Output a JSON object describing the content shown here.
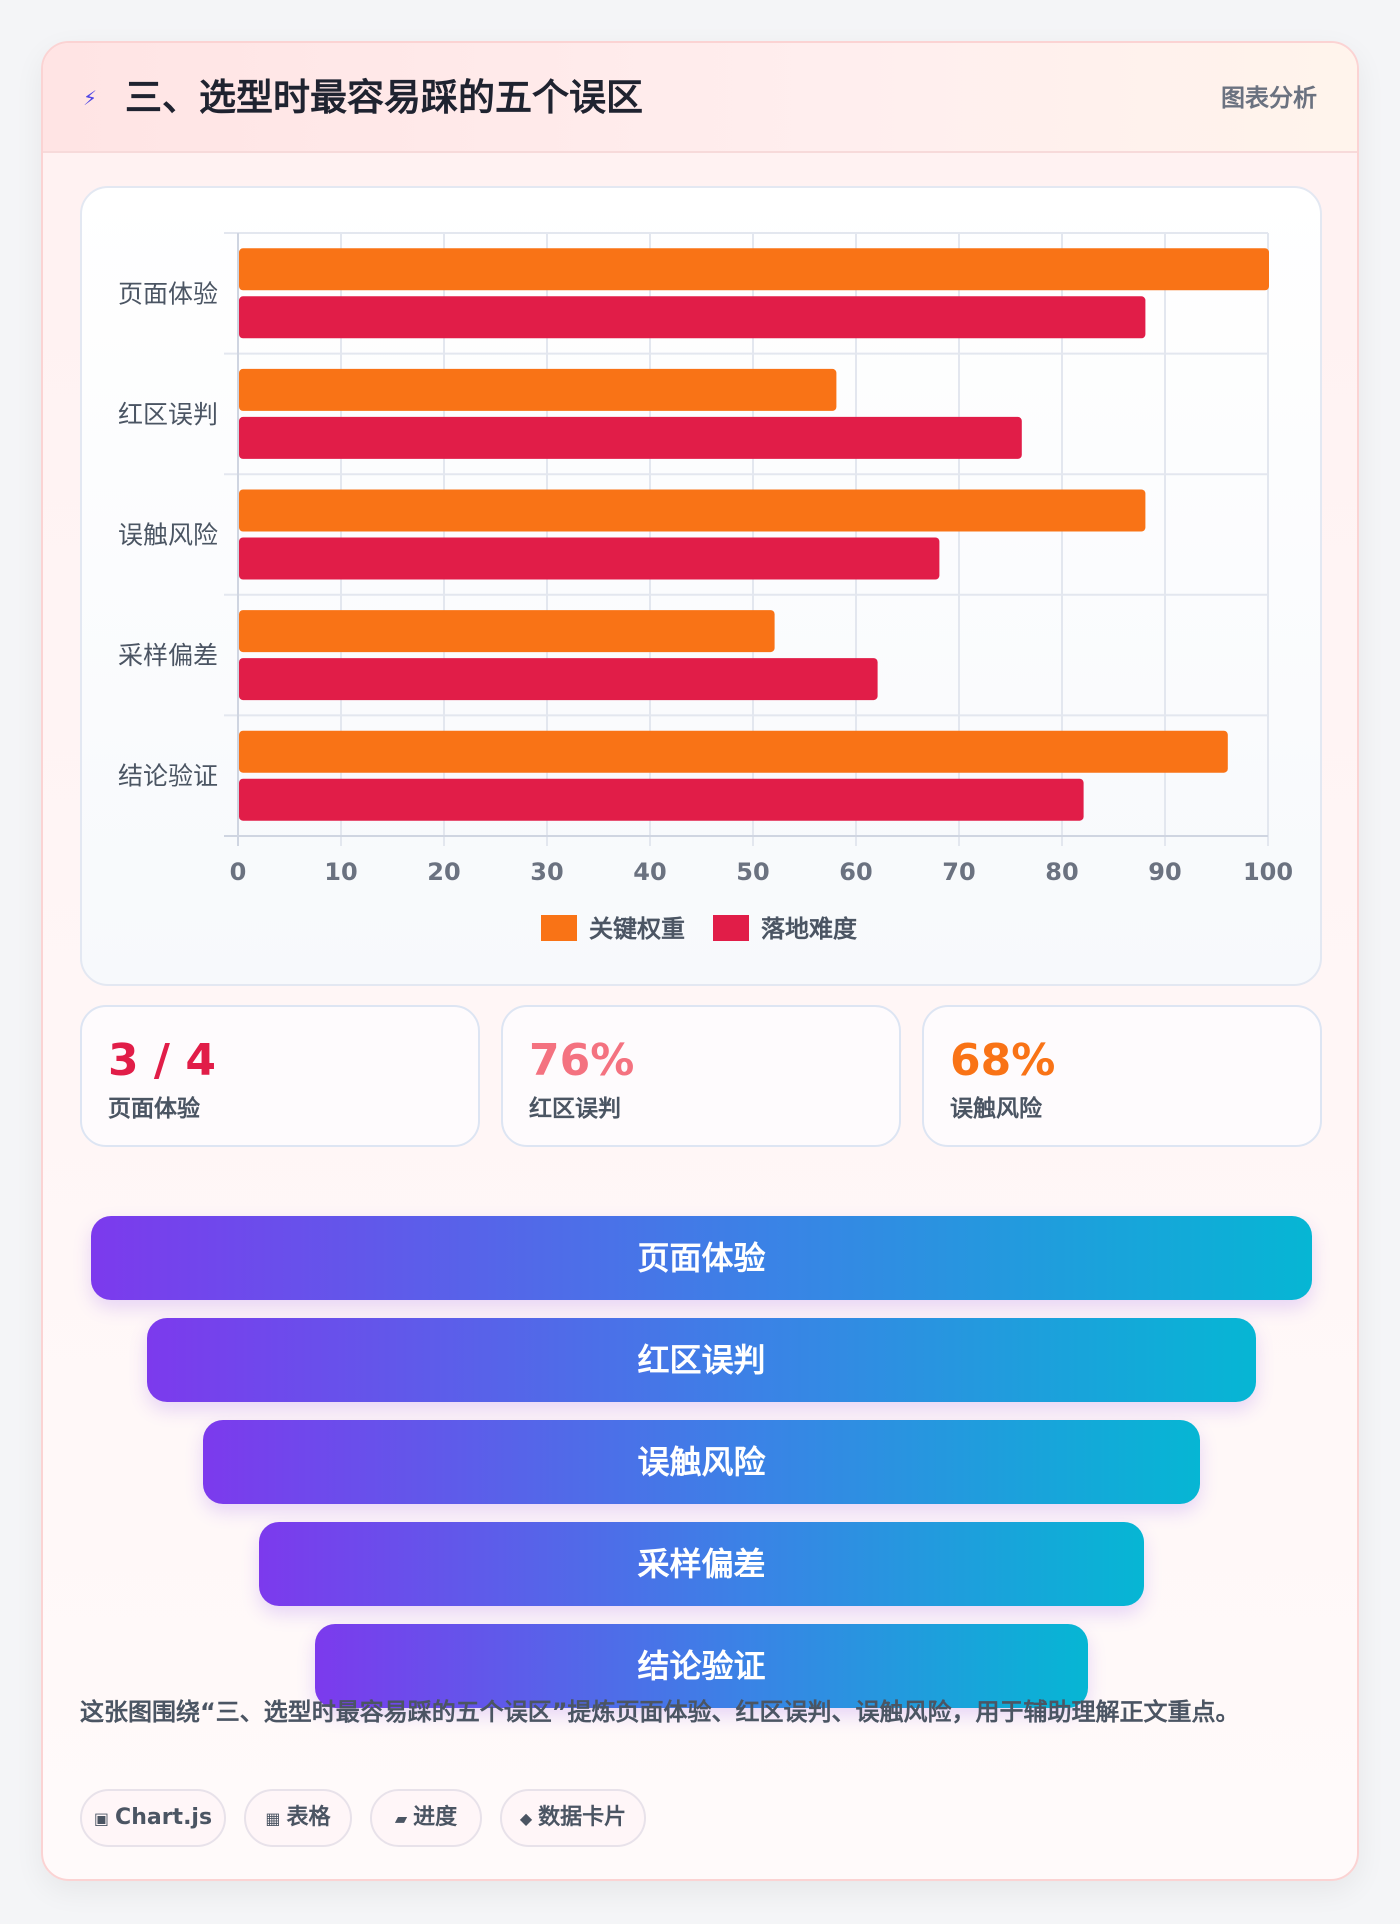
{
  "header": {
    "icon": "lightning-icon",
    "title": "三、选型时最容易踩的五个误区",
    "tag": "图表分析"
  },
  "chart_data": {
    "type": "bar",
    "orientation": "horizontal",
    "categories": [
      "页面体验",
      "红区误判",
      "误触风险",
      "采样偏差",
      "结论验证"
    ],
    "series": [
      {
        "name": "关键权重",
        "color": "#f97316",
        "values": [
          100,
          58,
          88,
          52,
          96
        ]
      },
      {
        "name": "落地难度",
        "color": "#e11d48",
        "values": [
          88,
          76,
          68,
          62,
          82
        ]
      }
    ],
    "xlim": [
      0,
      100
    ],
    "xticks": [
      0,
      10,
      20,
      30,
      40,
      50,
      60,
      70,
      80,
      90,
      100
    ],
    "grid": true,
    "legend": "bottom-center"
  },
  "stats": [
    {
      "value": "3 / 4",
      "label": "页面体验",
      "color": "#e11d48"
    },
    {
      "value": "76%",
      "label": "红区误判",
      "color": "#f47280"
    },
    {
      "value": "68%",
      "label": "误触风险",
      "color": "#f97316"
    }
  ],
  "funnel": [
    "页面体验",
    "红区误判",
    "误触风险",
    "采样偏差",
    "结论验证"
  ],
  "description": "这张图围绕“三、选型时最容易踩的五个误区”提炼页面体验、红区误判、误触风险，用于辅助理解正文重点。",
  "chips": [
    {
      "icon": "▣",
      "icon_name": "chart-icon",
      "label": "Chart.js"
    },
    {
      "icon": "▦",
      "icon_name": "table-icon",
      "label": "表格"
    },
    {
      "icon": "▰",
      "icon_name": "progress-icon",
      "label": "进度"
    },
    {
      "icon": "◆",
      "icon_name": "data-card-icon",
      "label": "数据卡片"
    }
  ]
}
